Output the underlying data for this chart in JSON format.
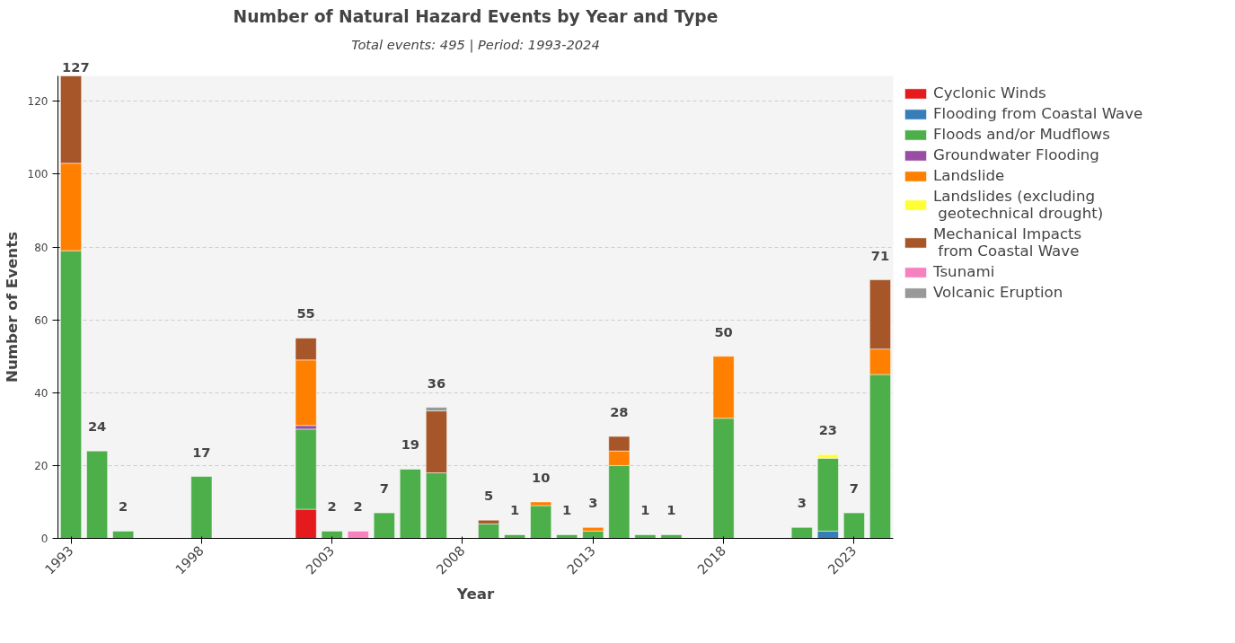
{
  "chart_data": {
    "type": "bar",
    "stacked": true,
    "title": "Number of Natural Hazard Events by Year and Type",
    "subtitle": "Total events: 495 | Period: 1993-2024",
    "xlabel": "Year",
    "ylabel": "Number of Events",
    "x": [
      1993,
      1994,
      1995,
      1998,
      2002,
      2003,
      2004,
      2005,
      2006,
      2007,
      2009,
      2010,
      2011,
      2012,
      2013,
      2014,
      2015,
      2016,
      2018,
      2021,
      2022,
      2023,
      2024
    ],
    "xlim": [
      1992.5,
      2024.5
    ],
    "xticks": [
      1993,
      1998,
      2003,
      2008,
      2013,
      2018,
      2023
    ],
    "ylim": [
      0,
      127
    ],
    "yticks": [
      0,
      20,
      40,
      60,
      80,
      100,
      120
    ],
    "grid": "y",
    "legend": "right",
    "series": [
      {
        "name": "Cyclonic Winds",
        "color": "#e41a1c",
        "values": [
          null,
          null,
          null,
          null,
          8,
          null,
          null,
          null,
          null,
          null,
          null,
          null,
          null,
          null,
          null,
          null,
          null,
          null,
          null,
          null,
          null,
          null,
          null
        ]
      },
      {
        "name": "Flooding from Coastal Wave",
        "color": "#377eb8",
        "values": [
          null,
          null,
          null,
          null,
          null,
          null,
          null,
          null,
          null,
          null,
          null,
          null,
          null,
          null,
          null,
          null,
          null,
          null,
          null,
          null,
          2,
          null,
          null
        ]
      },
      {
        "name": "Floods and/or Mudflows",
        "color": "#4daf4a",
        "values": [
          79,
          24,
          2,
          17,
          22,
          2,
          null,
          7,
          19,
          18,
          4,
          1,
          9,
          1,
          2,
          20,
          1,
          1,
          33,
          3,
          20,
          7,
          45
        ]
      },
      {
        "name": "Groundwater Flooding",
        "color": "#984ea3",
        "values": [
          null,
          null,
          null,
          null,
          1,
          null,
          null,
          null,
          null,
          null,
          null,
          null,
          null,
          null,
          null,
          null,
          null,
          null,
          null,
          null,
          null,
          null,
          null
        ]
      },
      {
        "name": "Landslide",
        "color": "#ff7f00",
        "values": [
          24,
          null,
          null,
          null,
          18,
          null,
          null,
          null,
          null,
          null,
          null,
          null,
          1,
          null,
          1,
          4,
          null,
          null,
          17,
          null,
          null,
          null,
          7
        ]
      },
      {
        "name": "Landslides (excluding\n geotechnical drought)",
        "color": "#ffff33",
        "values": [
          null,
          null,
          null,
          null,
          null,
          null,
          null,
          null,
          null,
          null,
          null,
          null,
          null,
          null,
          null,
          null,
          null,
          null,
          null,
          null,
          1,
          null,
          null
        ]
      },
      {
        "name": "Mechanical Impacts\n from Coastal Wave",
        "color": "#a65628",
        "values": [
          24,
          null,
          null,
          null,
          6,
          null,
          null,
          null,
          null,
          17,
          1,
          null,
          null,
          null,
          null,
          4,
          null,
          null,
          null,
          null,
          null,
          null,
          19
        ]
      },
      {
        "name": "Tsunami",
        "color": "#f781bf",
        "values": [
          null,
          null,
          null,
          null,
          null,
          null,
          2,
          null,
          null,
          null,
          null,
          null,
          null,
          null,
          null,
          null,
          null,
          null,
          null,
          null,
          null,
          null,
          null
        ]
      },
      {
        "name": "Volcanic Eruption",
        "color": "#999999",
        "values": [
          null,
          null,
          null,
          null,
          null,
          null,
          null,
          null,
          null,
          1,
          null,
          null,
          null,
          null,
          null,
          null,
          null,
          null,
          null,
          null,
          null,
          null,
          null
        ]
      }
    ],
    "totals": [
      "127",
      "24",
      "2",
      "17",
      "55",
      "2",
      "2",
      "7",
      "19",
      "36",
      "5",
      "1",
      "10",
      "1",
      "3",
      "28",
      "1",
      "1",
      "50",
      "3",
      "23",
      "7",
      "71"
    ]
  }
}
